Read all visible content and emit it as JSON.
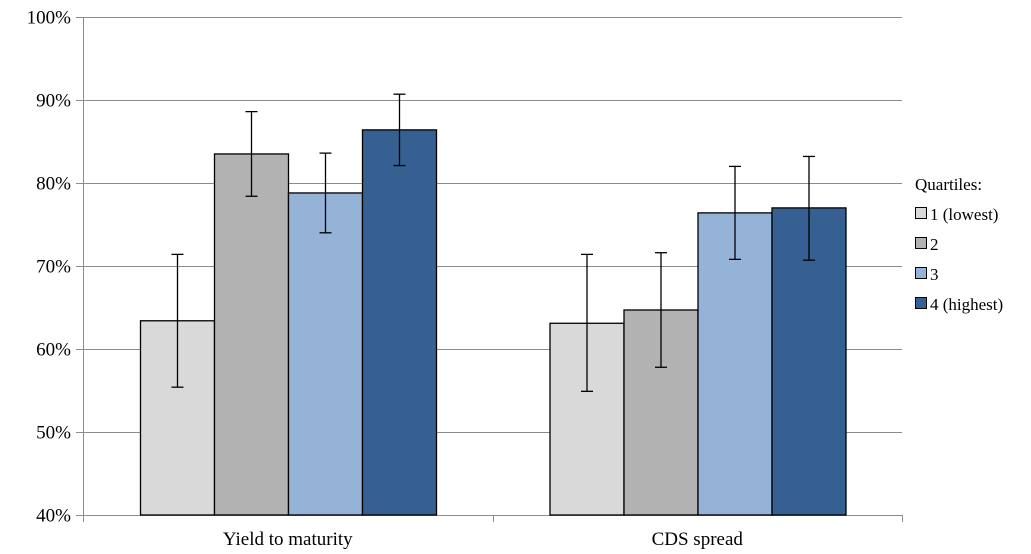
{
  "chart_data": {
    "type": "bar",
    "categories": [
      "Yield to maturity",
      "CDS spread"
    ],
    "ylim": [
      40,
      100
    ],
    "yticks": [
      40,
      50,
      60,
      70,
      80,
      90,
      100
    ],
    "ytick_labels": [
      "40%",
      "50%",
      "60%",
      "70%",
      "80%",
      "90%",
      "100%"
    ],
    "grid": true,
    "legend": {
      "title": "Quartiles:",
      "position": "right"
    },
    "series": [
      {
        "name": "1 (lowest)",
        "color": "#d9d9d9",
        "values": [
          63.4,
          63.1
        ],
        "error_low": [
          55.4,
          54.9
        ],
        "error_high": [
          71.4,
          71.4
        ]
      },
      {
        "name": "2",
        "color": "#b2b2b2",
        "values": [
          83.5,
          64.7
        ],
        "error_low": [
          78.4,
          57.8
        ],
        "error_high": [
          88.6,
          71.6
        ]
      },
      {
        "name": "3",
        "color": "#95b3d7",
        "values": [
          78.8,
          76.4
        ],
        "error_low": [
          74.0,
          70.8
        ],
        "error_high": [
          83.6,
          82.0
        ]
      },
      {
        "name": "4 (highest)",
        "color": "#366092",
        "values": [
          86.4,
          77.0
        ],
        "error_low": [
          82.1,
          70.7
        ],
        "error_high": [
          90.7,
          83.2
        ]
      }
    ]
  }
}
